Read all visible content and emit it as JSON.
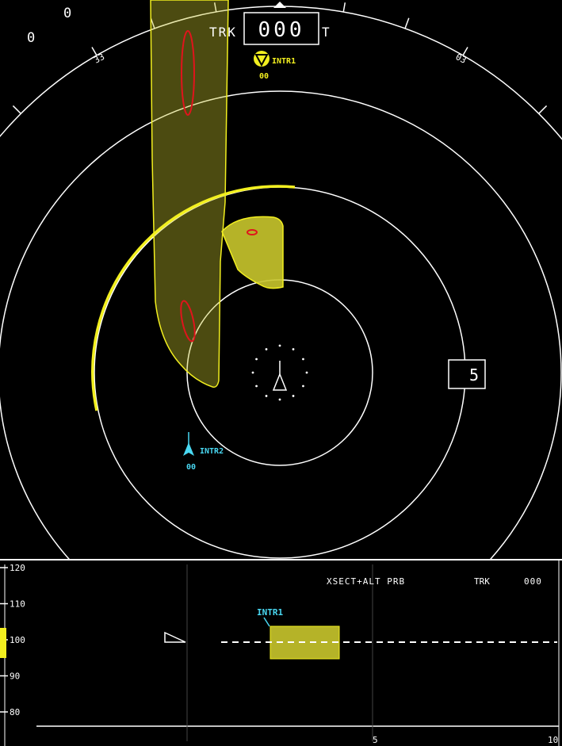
{
  "header": {
    "corner_top": "0",
    "corner_left": "0",
    "trk_label": "TRK",
    "trk_value": "000",
    "trk_ref": "T"
  },
  "compass": {
    "labels": [
      "33",
      "03"
    ]
  },
  "range_box": {
    "value": "5"
  },
  "traffic": [
    {
      "id": "INTR1",
      "label": "INTR1",
      "alt": "00",
      "color": "#f2ef1f"
    },
    {
      "id": "INTR2",
      "label": "INTR2",
      "alt": "00",
      "color": "#49d8f2"
    }
  ],
  "xsect": {
    "title": "XSECT+ALT PRB",
    "trk_label": "TRK",
    "trk_value": "000",
    "alt_ticks": [
      "120",
      "110",
      "100",
      "90",
      "80"
    ],
    "range_ticks": [
      "5",
      "10"
    ],
    "intruder_label": "INTR1",
    "own_alt": 100
  },
  "colors": {
    "background": "#000000",
    "ring": "#ffffff",
    "hazard_fill": "#c9c62c",
    "hazard_stroke": "#f2ef1f",
    "weather": "#e0141c",
    "traffic_cyan": "#49d8f2"
  },
  "icons": [
    "own-aircraft-icon",
    "traffic-arrow-icon",
    "heading-pointer-icon"
  ]
}
